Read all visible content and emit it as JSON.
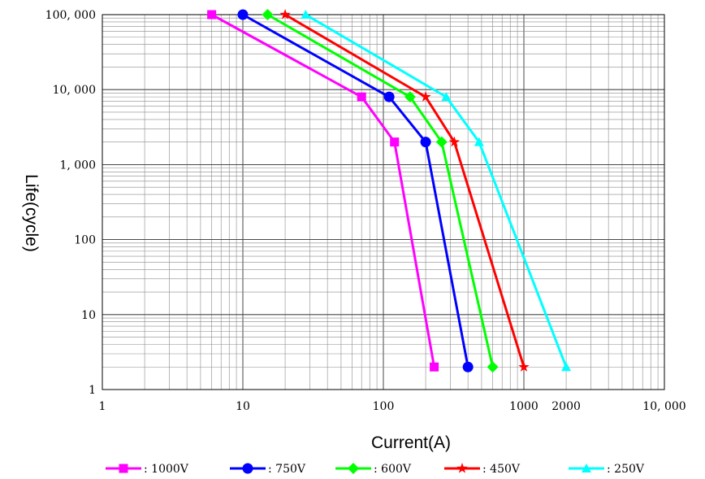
{
  "chart_data": {
    "type": "line",
    "title": "",
    "xlabel": "Current(A)",
    "ylabel": "Life(cycle)",
    "xscale": "log",
    "yscale": "log",
    "xlim": [
      1,
      10000
    ],
    "ylim": [
      1,
      100000
    ],
    "grid": true,
    "legend_position": "bottom",
    "x_ticks": [
      {
        "value": 1,
        "label": "1"
      },
      {
        "value": 10,
        "label": "10"
      },
      {
        "value": 100,
        "label": "100"
      },
      {
        "value": 1000,
        "label": "1000"
      },
      {
        "value": 2000,
        "label": "2000"
      },
      {
        "value": 10000,
        "label": "10, 000"
      }
    ],
    "y_ticks": [
      {
        "value": 1,
        "label": "1"
      },
      {
        "value": 10,
        "label": "10"
      },
      {
        "value": 100,
        "label": "100"
      },
      {
        "value": 1000,
        "label": "1, 000"
      },
      {
        "value": 10000,
        "label": "10, 000"
      },
      {
        "value": 100000,
        "label": "100, 000"
      }
    ],
    "series": [
      {
        "name": ": 1000V",
        "color": "#ff00ff",
        "marker": "square",
        "x": [
          6,
          70,
          120,
          230
        ],
        "y": [
          100000,
          8000,
          2000,
          2
        ]
      },
      {
        "name": ": 750V",
        "color": "#0000ff",
        "marker": "circle",
        "x": [
          10,
          110,
          200,
          400
        ],
        "y": [
          100000,
          8000,
          2000,
          2
        ]
      },
      {
        "name": ": 600V",
        "color": "#00ff00",
        "marker": "diamond",
        "x": [
          15,
          155,
          260,
          600
        ],
        "y": [
          100000,
          8000,
          2000,
          2
        ]
      },
      {
        "name": ": 450V",
        "color": "#ff0000",
        "marker": "star",
        "x": [
          20,
          200,
          320,
          1000
        ],
        "y": [
          100000,
          8000,
          2000,
          2
        ]
      },
      {
        "name": ": 250V",
        "color": "#00ffff",
        "marker": "triangle",
        "x": [
          28,
          280,
          480,
          2000
        ],
        "y": [
          100000,
          8000,
          2000,
          2
        ]
      }
    ]
  }
}
